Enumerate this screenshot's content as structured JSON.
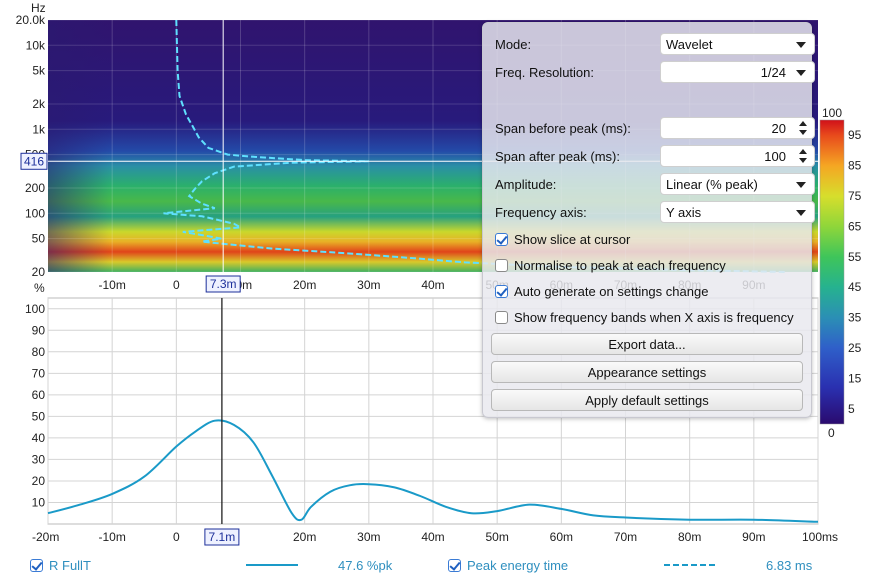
{
  "spectrogram": {
    "y_unit": "Hz",
    "y_ticks": [
      "20.0k",
      "10k",
      "5k",
      "2k",
      "1k",
      "500",
      "200",
      "100",
      "50",
      "20"
    ],
    "y_tick_values": [
      20000,
      10000,
      5000,
      2000,
      1000,
      500,
      200,
      100,
      50,
      20
    ],
    "x_ticks": [
      "-10m",
      "0",
      "10m",
      "20m",
      "30m",
      "40m",
      "50m",
      "60m",
      "70m",
      "80m",
      "90m"
    ],
    "x_tick_values": [
      -10,
      0,
      10,
      20,
      30,
      40,
      50,
      60,
      70,
      80,
      90
    ],
    "x_range_ms": [
      -20,
      100
    ],
    "cursor_freq_label": "416",
    "cursor_freq_hz": 416,
    "cursor_time_label": "7.3m",
    "cursor_time_ms": 7.3,
    "peak_energy_curve": [
      [
        20000,
        0
      ],
      [
        5000,
        0.2
      ],
      [
        2500,
        0.5
      ],
      [
        1500,
        1.5
      ],
      [
        1100,
        2.5
      ],
      [
        800,
        3.5
      ],
      [
        600,
        5
      ],
      [
        500,
        8
      ],
      [
        470,
        12
      ],
      [
        430,
        20
      ],
      [
        416,
        30
      ],
      [
        400,
        18
      ],
      [
        360,
        9
      ],
      [
        300,
        6
      ],
      [
        240,
        4
      ],
      [
        200,
        3
      ],
      [
        160,
        2
      ],
      [
        130,
        4
      ],
      [
        115,
        6
      ],
      [
        100,
        -2
      ],
      [
        92,
        4
      ],
      [
        85,
        6
      ],
      [
        75,
        9
      ],
      [
        68,
        10
      ],
      [
        60,
        1
      ],
      [
        55,
        4
      ],
      [
        50,
        7
      ],
      [
        46,
        4
      ],
      [
        42,
        9
      ],
      [
        38,
        15
      ],
      [
        34,
        25
      ],
      [
        30,
        35
      ],
      [
        26,
        45
      ],
      [
        23,
        60
      ],
      [
        21,
        80
      ],
      [
        20,
        95
      ]
    ],
    "colorbar": {
      "max_label": "100",
      "min_label": "0",
      "ticks": [
        "95",
        "85",
        "75",
        "65",
        "55",
        "45",
        "35",
        "25",
        "15",
        "5"
      ],
      "tick_values": [
        95,
        85,
        75,
        65,
        55,
        45,
        35,
        25,
        15,
        5
      ]
    }
  },
  "chart_data": {
    "type": "line",
    "y_unit": "%",
    "x": [
      -20,
      -15,
      -10,
      -5,
      0,
      3,
      6,
      9,
      12,
      15,
      18,
      19.5,
      21,
      24,
      27,
      30,
      34,
      38,
      42,
      46,
      50,
      55,
      60,
      65,
      70,
      80,
      90,
      100
    ],
    "series": [
      {
        "values": [
          5,
          9,
          14,
          22,
          36,
          43,
          48,
          46,
          38,
          22,
          5,
          2,
          8,
          15,
          18,
          18.5,
          17,
          13,
          8,
          5,
          6,
          9,
          7,
          4,
          3,
          2,
          2,
          1
        ]
      }
    ],
    "ylim": [
      0,
      105
    ],
    "xlim": [
      -20,
      100
    ],
    "y_ticks": [
      "100",
      "90",
      "80",
      "70",
      "60",
      "50",
      "40",
      "30",
      "20",
      "10"
    ],
    "y_tick_values": [
      100,
      90,
      80,
      70,
      60,
      50,
      40,
      30,
      20,
      10
    ],
    "x_ticks": [
      "-20m",
      "-10m",
      "0",
      "20m",
      "30m",
      "40m",
      "50m",
      "60m",
      "70m",
      "80m",
      "90m",
      "100ms"
    ],
    "x_tick_values": [
      -20,
      -10,
      0,
      20,
      30,
      40,
      50,
      60,
      70,
      80,
      90,
      100
    ],
    "cursor_label": "7.1m",
    "cursor_ms": 7.1
  },
  "panel": {
    "mode_label": "Mode:",
    "mode_value": "Wavelet",
    "freq_res_label": "Freq. Resolution:",
    "freq_res_value": "1/24",
    "span_before_label": "Span before peak (ms):",
    "span_before_value": "20",
    "span_after_label": "Span after peak (ms):",
    "span_after_value": "100",
    "amplitude_label": "Amplitude:",
    "amplitude_value": "Linear (% peak)",
    "freq_axis_label": "Frequency axis:",
    "freq_axis_value": "Y axis",
    "show_slice": "Show slice at cursor",
    "normalise": "Normalise to peak at each frequency",
    "auto_generate": "Auto generate on settings change",
    "show_bands": "Show frequency bands when X axis is frequency",
    "export_btn": "Export data...",
    "appearance_btn": "Appearance settings",
    "defaults_btn": "Apply default settings"
  },
  "legend": {
    "series1_name": "R FullT",
    "series1_value": "47.6 %pk",
    "series2_name": "Peak energy time",
    "series2_value": "6.83 ms"
  },
  "colors": {
    "line": "#1a9ac8",
    "cursor": "#222222",
    "grid": "#d4d4d4",
    "label_box": "#1c2f9a"
  }
}
